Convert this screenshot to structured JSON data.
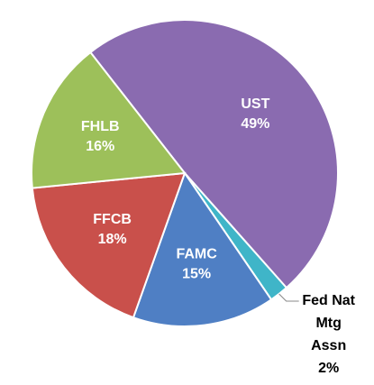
{
  "chart_data": {
    "type": "pie",
    "categories": [
      "UST",
      "Fed Nat Mtg Assn",
      "FAMC",
      "FFCB",
      "FHLB"
    ],
    "values": [
      49,
      2,
      15,
      18,
      16
    ],
    "value_labels": [
      "49%",
      "2%",
      "15%",
      "18%",
      "16%"
    ],
    "colors": [
      "#8a6bb0",
      "#3fb5c8",
      "#4f7fc4",
      "#c9504b",
      "#9dc05a"
    ]
  }
}
